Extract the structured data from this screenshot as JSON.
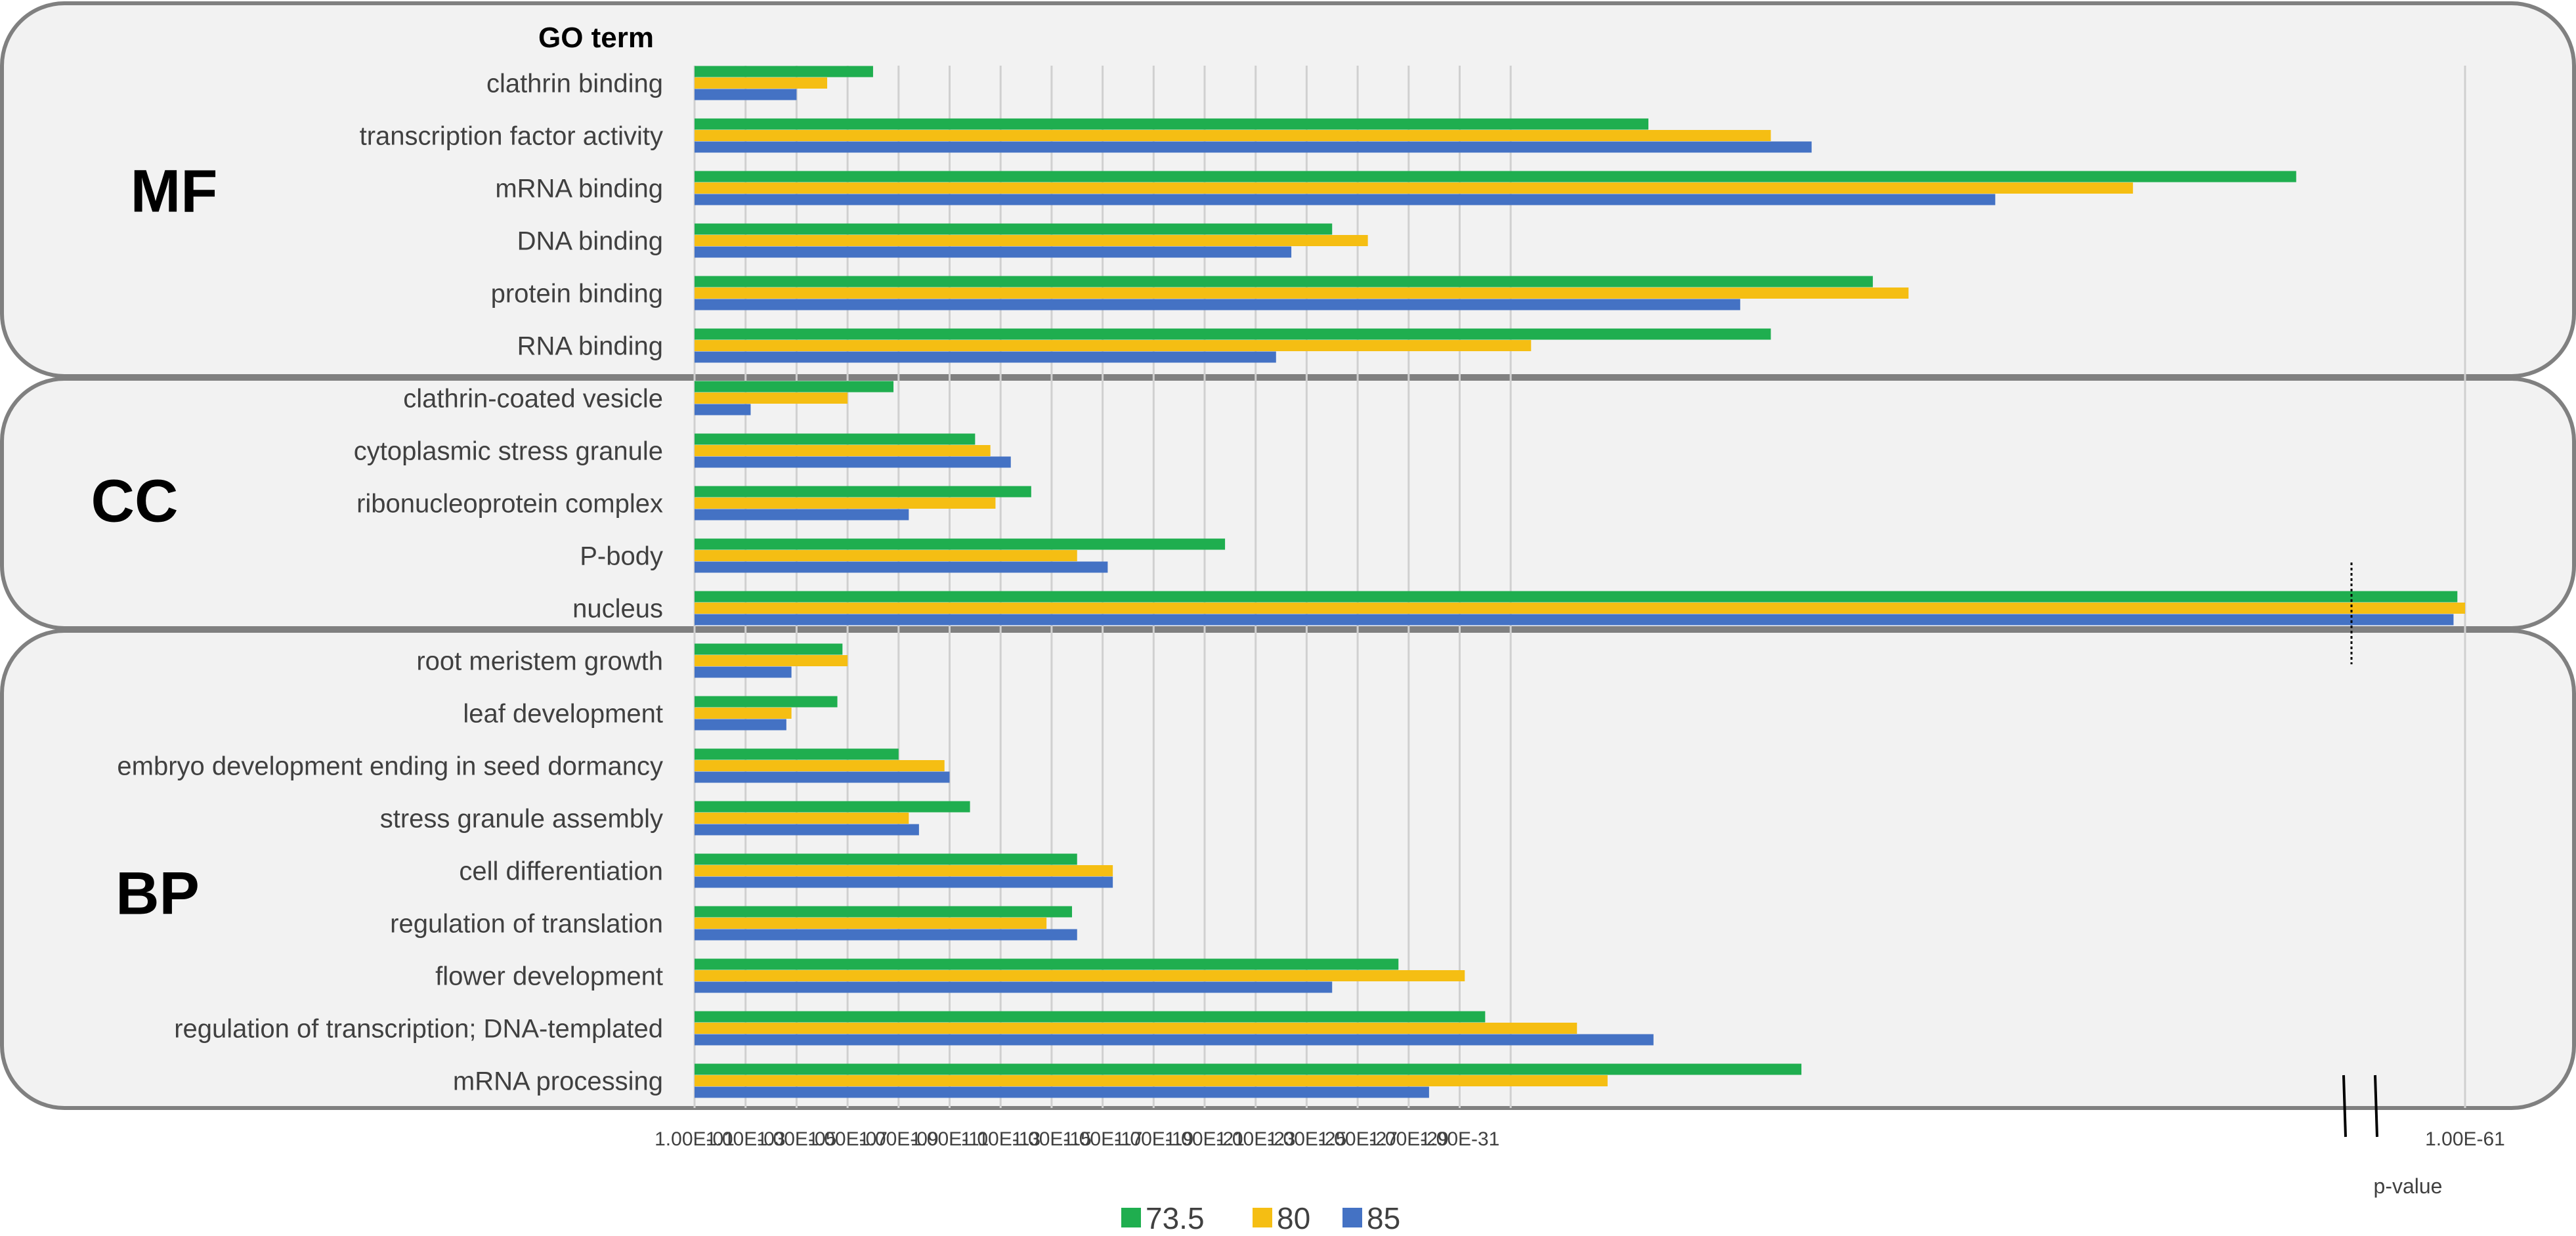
{
  "chart_data": {
    "type": "bar",
    "orientation": "horizontal",
    "header": "GO term",
    "xlabel": "p-value",
    "x_scale": "log-reversed",
    "x_axis_break": true,
    "grid": true,
    "legend_position": "bottom",
    "tick_labels": [
      "1.00E-01",
      "1.00E-03",
      "1.00E-05",
      "1.00E-07",
      "1.00E-09",
      "1.00E-11",
      "1.00E-13",
      "1.00E-15",
      "1.00E-17",
      "1.00E-19",
      "1.00E-21",
      "1.00E-23",
      "1.00E-25",
      "1.00E-27",
      "1.00E-29",
      "1.00E-31",
      "1.00E-61"
    ],
    "series": [
      {
        "name": "73.5",
        "color": "#1fae4f"
      },
      {
        "name": "80",
        "color": "#f5be13"
      },
      {
        "name": "85",
        "color": "#4472c4"
      }
    ],
    "groups": [
      {
        "name": "MF",
        "categories": [
          {
            "label": "clathrin binding",
            "values": [
              3.5,
              2.6,
              2.0
            ]
          },
          {
            "label": "transcription factor activity",
            "values": [
              18.7,
              21.1,
              21.9
            ]
          },
          {
            "label": "mRNA binding",
            "values": [
              31.4,
              28.2,
              25.5
            ]
          },
          {
            "label": "DNA binding",
            "values": [
              12.5,
              13.2,
              11.7
            ]
          },
          {
            "label": "protein binding",
            "values": [
              23.1,
              23.8,
              20.5
            ]
          },
          {
            "label": "RNA binding",
            "values": [
              21.1,
              16.4,
              11.4
            ]
          }
        ]
      },
      {
        "name": "CC",
        "categories": [
          {
            "label": "clathrin-coated vesicle",
            "values": [
              3.9,
              3.0,
              1.1
            ]
          },
          {
            "label": "cytoplasmic stress granule",
            "values": [
              5.5,
              5.8,
              6.2
            ]
          },
          {
            "label": "ribonucleoprotein complex",
            "values": [
              6.6,
              5.9,
              4.2
            ]
          },
          {
            "label": "P-body",
            "values": [
              10.4,
              7.5,
              8.1
            ]
          },
          {
            "label": "nucleus",
            "values": [
              59.0,
              61.0,
              58.0
            ]
          }
        ]
      },
      {
        "name": "BP",
        "categories": [
          {
            "label": "root meristem growth",
            "values": [
              2.9,
              3.0,
              1.9
            ]
          },
          {
            "label": "leaf development",
            "values": [
              2.8,
              1.9,
              1.8
            ]
          },
          {
            "label": "embryo development ending in seed dormancy",
            "values": [
              4.0,
              4.9,
              5.0
            ]
          },
          {
            "label": "stress granule assembly",
            "values": [
              5.4,
              4.2,
              4.4
            ]
          },
          {
            "label": "cell differentiation",
            "values": [
              7.5,
              8.2,
              8.2
            ]
          },
          {
            "label": "regulation of translation",
            "values": [
              7.4,
              6.9,
              7.5
            ]
          },
          {
            "label": "flower development",
            "values": [
              13.8,
              15.1,
              12.5
            ]
          },
          {
            "label": "regulation of transcription; DNA-templated",
            "values": [
              15.5,
              17.3,
              18.8
            ]
          },
          {
            "label": "mRNA processing",
            "values": [
              21.7,
              17.9,
              14.4
            ]
          }
        ]
      }
    ]
  }
}
